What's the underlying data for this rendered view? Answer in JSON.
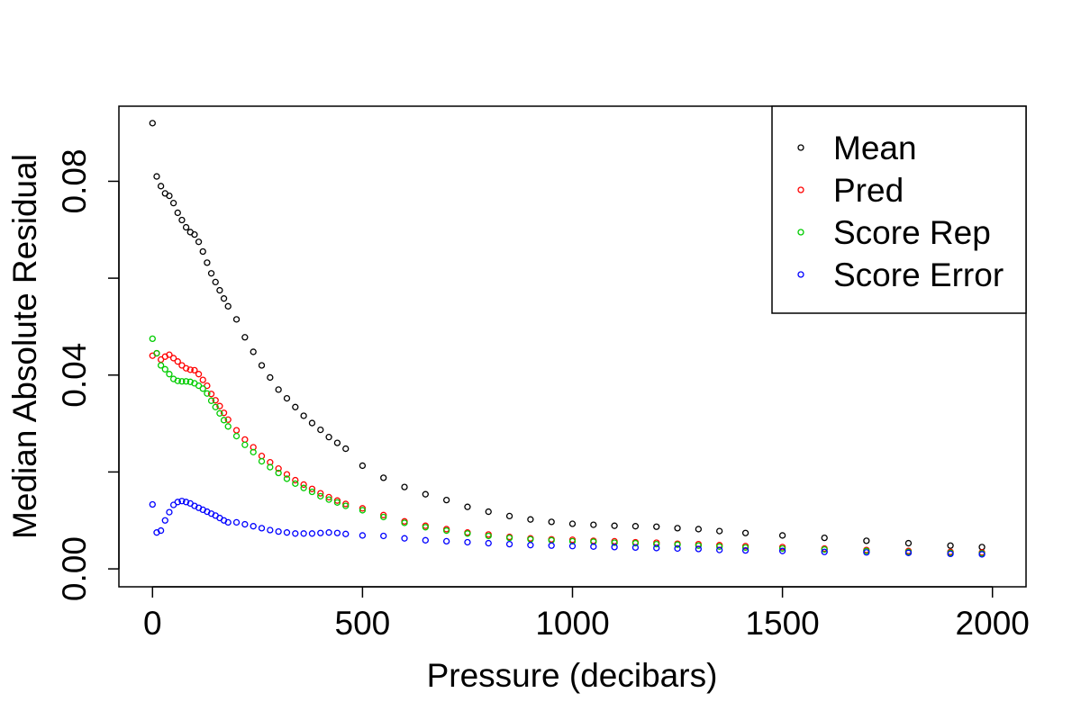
{
  "chart_data": {
    "type": "scatter",
    "title": "",
    "xlabel": "Pressure (decibars)",
    "ylabel": "Median Absolute Residual",
    "xlim": [
      -80,
      2080
    ],
    "ylim": [
      -0.0037,
      0.0955
    ],
    "x_ticks": [
      0,
      500,
      1000,
      1500,
      2000
    ],
    "x_tick_labels": [
      "0",
      "500",
      "1000",
      "1500",
      "2000"
    ],
    "y_ticks": [
      0,
      0.02,
      0.04,
      0.06,
      0.08
    ],
    "y_tick_labels": [
      "0.00",
      "",
      "0.04",
      "",
      "0.08"
    ],
    "grid": false,
    "legend_position": "top-right",
    "marker": "open-circle",
    "x": [
      0,
      10,
      20,
      30,
      40,
      50,
      60,
      70,
      80,
      90,
      100,
      110,
      120,
      130,
      140,
      150,
      160,
      170,
      180,
      200,
      220,
      240,
      260,
      280,
      300,
      320,
      340,
      360,
      380,
      400,
      420,
      440,
      460,
      500,
      550,
      600,
      650,
      700,
      750,
      800,
      850,
      900,
      950,
      1000,
      1050,
      1100,
      1150,
      1200,
      1250,
      1300,
      1350,
      1412,
      1500,
      1600,
      1700,
      1800,
      1900,
      1975
    ],
    "series": [
      {
        "name": "Mean",
        "color": "#000000",
        "values": [
          0.092,
          0.081,
          0.079,
          0.0775,
          0.077,
          0.0755,
          0.0735,
          0.072,
          0.0705,
          0.0695,
          0.069,
          0.0675,
          0.0655,
          0.0632,
          0.061,
          0.0592,
          0.0575,
          0.0558,
          0.0542,
          0.0515,
          0.0478,
          0.0448,
          0.042,
          0.0395,
          0.037,
          0.0352,
          0.0334,
          0.0316,
          0.0301,
          0.0287,
          0.0272,
          0.026,
          0.0248,
          0.0213,
          0.0188,
          0.0169,
          0.0154,
          0.0142,
          0.0128,
          0.0118,
          0.0109,
          0.0102,
          0.0097,
          0.0093,
          0.0091,
          0.0089,
          0.0088,
          0.0087,
          0.0084,
          0.0082,
          0.0078,
          0.0074,
          0.0069,
          0.0064,
          0.0058,
          0.0053,
          0.0048,
          0.0045
        ]
      },
      {
        "name": "Pred",
        "color": "#ff0000",
        "values": [
          0.044,
          0.0445,
          0.0432,
          0.0438,
          0.0442,
          0.0435,
          0.0428,
          0.042,
          0.0414,
          0.0411,
          0.041,
          0.0402,
          0.039,
          0.0378,
          0.0361,
          0.0348,
          0.0336,
          0.0322,
          0.0308,
          0.0286,
          0.0267,
          0.0251,
          0.0233,
          0.022,
          0.0207,
          0.0195,
          0.0183,
          0.0174,
          0.0165,
          0.0156,
          0.0148,
          0.0141,
          0.0134,
          0.0125,
          0.0111,
          0.0098,
          0.0089,
          0.0082,
          0.0075,
          0.0071,
          0.0066,
          0.0063,
          0.0061,
          0.006,
          0.0058,
          0.0057,
          0.0055,
          0.0054,
          0.0052,
          0.0051,
          0.0049,
          0.0047,
          0.0045,
          0.0042,
          0.0039,
          0.0037,
          0.0035,
          0.0034
        ]
      },
      {
        "name": "Score Rep",
        "color": "#00cc00",
        "values": [
          0.0475,
          0.0445,
          0.042,
          0.0412,
          0.0402,
          0.0392,
          0.0388,
          0.0387,
          0.0387,
          0.0386,
          0.0383,
          0.0378,
          0.0372,
          0.0362,
          0.0347,
          0.0334,
          0.0321,
          0.0307,
          0.0294,
          0.0274,
          0.0256,
          0.0241,
          0.0222,
          0.021,
          0.0198,
          0.0186,
          0.0176,
          0.0167,
          0.0159,
          0.015,
          0.0143,
          0.0137,
          0.013,
          0.0121,
          0.0107,
          0.0095,
          0.0086,
          0.0079,
          0.0073,
          0.0068,
          0.0064,
          0.0061,
          0.0059,
          0.0057,
          0.0056,
          0.0054,
          0.0053,
          0.0051,
          0.005,
          0.0048,
          0.0046,
          0.0044,
          0.0042,
          0.004,
          0.0037,
          0.0035,
          0.0033,
          0.0032
        ]
      },
      {
        "name": "Score Error",
        "color": "#0000ff",
        "values": [
          0.0133,
          0.0075,
          0.0079,
          0.01,
          0.0117,
          0.0132,
          0.0138,
          0.014,
          0.0138,
          0.0135,
          0.013,
          0.0126,
          0.0122,
          0.0118,
          0.0114,
          0.011,
          0.0105,
          0.01,
          0.0096,
          0.0096,
          0.0092,
          0.0088,
          0.0084,
          0.008,
          0.0077,
          0.0075,
          0.0073,
          0.0073,
          0.0073,
          0.0074,
          0.0075,
          0.0074,
          0.0072,
          0.0069,
          0.0068,
          0.0063,
          0.0059,
          0.0057,
          0.0055,
          0.0053,
          0.0051,
          0.0049,
          0.0048,
          0.0047,
          0.0046,
          0.0045,
          0.0044,
          0.0043,
          0.0042,
          0.0041,
          0.0039,
          0.0038,
          0.0037,
          0.0035,
          0.0034,
          0.0033,
          0.0031,
          0.003
        ]
      }
    ]
  }
}
